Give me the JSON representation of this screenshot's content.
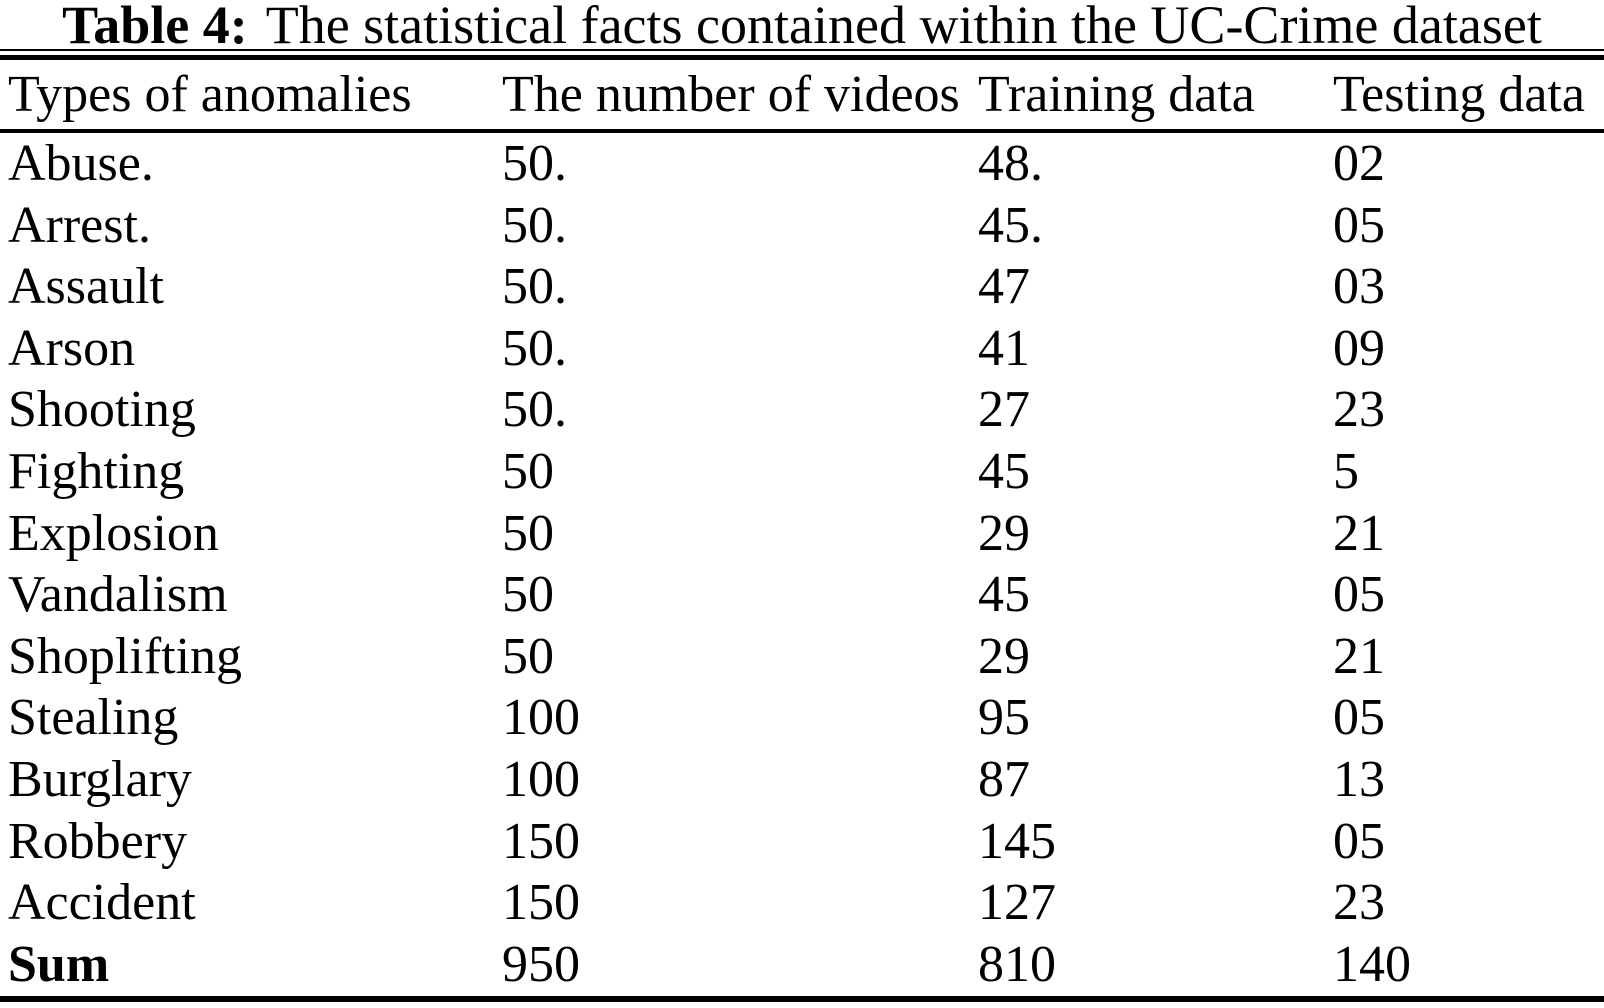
{
  "caption": {
    "label": "Table 4:",
    "text": "The statistical facts contained within the UC-Crime dataset"
  },
  "table": {
    "columns": [
      "Types of anomalies",
      "The number of videos",
      "Training data",
      "Testing data"
    ],
    "rows": [
      {
        "type": "Abuse.",
        "videos": "50.",
        "training": "48.",
        "testing": "02",
        "bold": false
      },
      {
        "type": "Arrest.",
        "videos": "50.",
        "training": "45.",
        "testing": "05",
        "bold": false
      },
      {
        "type": "Assault",
        "videos": "50.",
        "training": "47",
        "testing": "03",
        "bold": false
      },
      {
        "type": "Arson",
        "videos": "50.",
        "training": "41",
        "testing": "09",
        "bold": false
      },
      {
        "type": "Shooting",
        "videos": "50.",
        "training": "27",
        "testing": "23",
        "bold": false
      },
      {
        "type": "Fighting",
        "videos": "50",
        "training": "45",
        "testing": "5",
        "bold": false
      },
      {
        "type": "Explosion",
        "videos": "50",
        "training": "29",
        "testing": "21",
        "bold": false
      },
      {
        "type": "Vandalism",
        "videos": "50",
        "training": "45",
        "testing": "05",
        "bold": false
      },
      {
        "type": "Shoplifting",
        "videos": "50",
        "training": "29",
        "testing": "21",
        "bold": false
      },
      {
        "type": "Stealing",
        "videos": "100",
        "training": "95",
        "testing": "05",
        "bold": false
      },
      {
        "type": "Burglary",
        "videos": "100",
        "training": "87",
        "testing": "13",
        "bold": false
      },
      {
        "type": "Robbery",
        "videos": "150",
        "training": "145",
        "testing": "05",
        "bold": false
      },
      {
        "type": "Accident",
        "videos": "150",
        "training": "127",
        "testing": "23",
        "bold": false
      },
      {
        "type": "Sum",
        "videos": "950",
        "training": "810",
        "testing": "140",
        "bold": true
      }
    ]
  },
  "colors": {
    "text": "#000000",
    "background": "#ffffff",
    "rule": "#000000"
  }
}
